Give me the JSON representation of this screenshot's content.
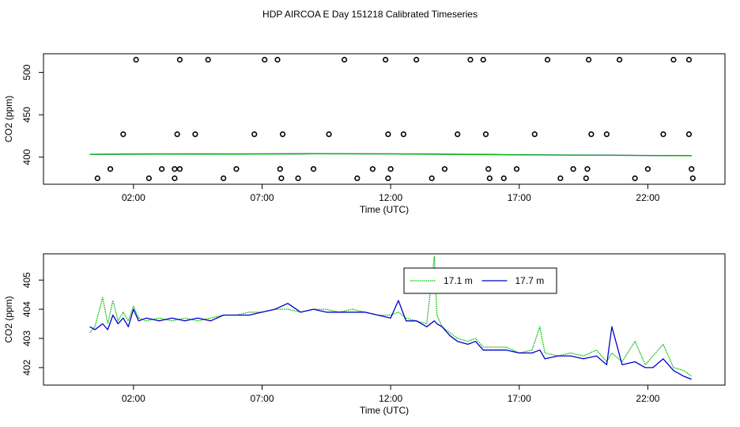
{
  "page": {
    "title": "HDP AIRCOA E  Day 151218  Calibrated Timeseries"
  },
  "chart_data": [
    {
      "type": "scatter",
      "title": "",
      "xlabel": "Time (UTC)",
      "ylabel": "CO2 (ppm)",
      "xlim": [
        -1.5,
        25.0
      ],
      "ylim": [
        368,
        522
      ],
      "x_ticks": [
        "02:00",
        "07:00",
        "12:00",
        "17:00",
        "22:00"
      ],
      "x_tick_values": [
        2,
        7,
        12,
        17,
        22
      ],
      "y_ticks": [
        "400",
        "450",
        "500"
      ],
      "y_tick_values": [
        400,
        450,
        500
      ],
      "grid": false,
      "series": [
        {
          "marker": "circle",
          "color": "#000000",
          "x": [
            0.6,
            1.1,
            1.6,
            2.1,
            2.6,
            3.1,
            3.6,
            3.6,
            3.7,
            3.8,
            3.8,
            4.4,
            4.9,
            5.5,
            6.0,
            6.7,
            7.1,
            7.6,
            7.7,
            7.75,
            7.8,
            8.4,
            9.0,
            9.6,
            10.2,
            10.7,
            11.3,
            11.8,
            11.9,
            11.9,
            12.0,
            12.5,
            13.0,
            13.6,
            14.1,
            14.6,
            15.1,
            15.6,
            15.7,
            15.8,
            15.85,
            16.4,
            16.9,
            17.6,
            18.1,
            18.6,
            19.1,
            19.6,
            19.65,
            19.7,
            19.8,
            20.4,
            20.9,
            21.5,
            22.0,
            22.6,
            23.0,
            23.6,
            23.6,
            23.7,
            23.75
          ],
          "y": [
            375,
            386,
            427,
            515,
            375,
            386,
            375,
            386,
            427,
            515,
            386,
            427,
            515,
            375,
            386,
            427,
            515,
            515,
            386,
            375,
            427,
            375,
            386,
            427,
            515,
            375,
            386,
            515,
            375,
            427,
            386,
            427,
            515,
            375,
            386,
            427,
            515,
            515,
            427,
            386,
            375,
            375,
            386,
            427,
            515,
            375,
            386,
            375,
            386,
            515,
            427,
            427,
            515,
            375,
            386,
            427,
            515,
            515,
            427,
            386,
            375
          ]
        },
        {
          "marker": "line",
          "name": "",
          "color": "#0000cc",
          "x": [
            0.3,
            3.0,
            6.0,
            9.0,
            12.0,
            15.0,
            18.0,
            21.0,
            23.7
          ],
          "y": [
            403.4,
            403.7,
            403.8,
            404.0,
            403.9,
            403.3,
            402.6,
            402.2,
            401.7
          ]
        },
        {
          "marker": "line",
          "name": "",
          "color": "#00bb00",
          "x": [
            0.3,
            3.0,
            6.0,
            9.0,
            12.0,
            15.0,
            18.0,
            21.0,
            23.7
          ],
          "y": [
            403.3,
            403.6,
            403.7,
            403.9,
            403.8,
            403.2,
            402.5,
            402.1,
            401.6
          ]
        }
      ]
    },
    {
      "type": "line",
      "title": "",
      "xlabel": "Time (UTC)",
      "ylabel": "CO2 (ppm)",
      "xlim": [
        -1.5,
        25.0
      ],
      "ylim": [
        401.4,
        405.9
      ],
      "x_ticks": [
        "02:00",
        "07:00",
        "12:00",
        "17:00",
        "22:00"
      ],
      "x_tick_values": [
        2,
        7,
        12,
        17,
        22
      ],
      "y_ticks": [
        "402",
        "403",
        "404",
        "405"
      ],
      "y_tick_values": [
        402,
        403,
        404,
        405
      ],
      "grid": false,
      "legend": {
        "placement": "top-center"
      },
      "series": [
        {
          "name": "17.1 m",
          "color": "#00bb00",
          "dash": "dotted",
          "x": [
            0.3,
            0.5,
            0.8,
            1.0,
            1.2,
            1.4,
            1.6,
            1.8,
            2.0,
            2.2,
            2.5,
            3.0,
            3.5,
            4.0,
            4.5,
            5.0,
            5.5,
            6.0,
            6.5,
            7.0,
            7.5,
            8.0,
            8.5,
            9.0,
            9.5,
            10.0,
            10.5,
            11.0,
            11.5,
            12.0,
            12.3,
            12.6,
            13.0,
            13.4,
            13.7,
            13.8,
            14.0,
            14.3,
            14.6,
            15.0,
            15.3,
            15.6,
            16.0,
            16.5,
            17.0,
            17.5,
            17.8,
            18.0,
            18.5,
            19.0,
            19.5,
            20.0,
            20.4,
            20.6,
            21.0,
            21.5,
            21.9,
            22.2,
            22.6,
            23.0,
            23.4,
            23.7
          ],
          "y": [
            403.2,
            403.4,
            404.4,
            403.5,
            404.3,
            403.6,
            403.9,
            403.6,
            404.1,
            403.7,
            403.6,
            403.7,
            403.6,
            403.7,
            403.6,
            403.7,
            403.8,
            403.8,
            403.9,
            403.9,
            404.0,
            404.0,
            403.9,
            404.0,
            404.0,
            403.9,
            404.0,
            403.9,
            403.8,
            403.8,
            403.9,
            403.7,
            403.6,
            403.5,
            405.8,
            403.8,
            403.4,
            403.2,
            403.0,
            402.9,
            403.0,
            402.7,
            402.7,
            402.7,
            402.5,
            402.6,
            403.4,
            402.5,
            402.4,
            402.5,
            402.4,
            402.6,
            402.2,
            402.5,
            402.2,
            402.9,
            402.1,
            402.4,
            402.8,
            402.0,
            401.9,
            401.7
          ]
        },
        {
          "name": "17.7 m",
          "color": "#0000cc",
          "dash": "solid",
          "x": [
            0.3,
            0.5,
            0.8,
            1.0,
            1.2,
            1.4,
            1.6,
            1.8,
            2.0,
            2.2,
            2.5,
            3.0,
            3.5,
            4.0,
            4.5,
            5.0,
            5.5,
            6.0,
            6.5,
            7.0,
            7.5,
            8.0,
            8.5,
            9.0,
            9.5,
            10.0,
            10.5,
            11.0,
            11.5,
            12.0,
            12.3,
            12.6,
            13.0,
            13.4,
            13.7,
            13.8,
            14.0,
            14.3,
            14.6,
            15.0,
            15.3,
            15.6,
            16.0,
            16.5,
            17.0,
            17.5,
            17.8,
            18.0,
            18.5,
            19.0,
            19.5,
            20.0,
            20.4,
            20.6,
            21.0,
            21.5,
            21.9,
            22.2,
            22.6,
            23.0,
            23.4,
            23.7
          ],
          "y": [
            403.4,
            403.3,
            403.5,
            403.3,
            403.8,
            403.5,
            403.7,
            403.4,
            404.0,
            403.6,
            403.7,
            403.6,
            403.7,
            403.6,
            403.7,
            403.6,
            403.8,
            403.8,
            403.8,
            403.9,
            404.0,
            404.2,
            403.9,
            404.0,
            403.9,
            403.9,
            403.9,
            403.9,
            403.8,
            403.7,
            404.3,
            403.6,
            403.6,
            403.4,
            403.6,
            403.5,
            403.4,
            403.1,
            402.9,
            402.8,
            402.9,
            402.6,
            402.6,
            402.6,
            402.5,
            402.5,
            402.6,
            402.3,
            402.4,
            402.4,
            402.3,
            402.4,
            402.1,
            403.4,
            402.1,
            402.2,
            402.0,
            402.0,
            402.3,
            401.9,
            401.7,
            401.6
          ]
        }
      ]
    }
  ]
}
